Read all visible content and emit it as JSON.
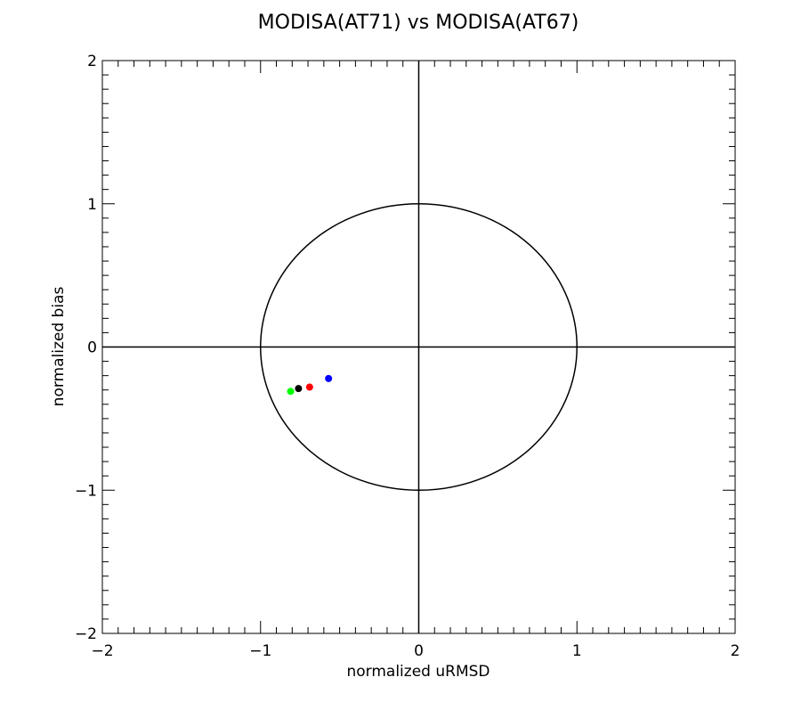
{
  "chart_data": {
    "type": "scatter",
    "title": "MODISA(AT71) vs MODISA(AT67)",
    "xlabel": "normalized uRMSD",
    "ylabel": "normalized bias",
    "xlim": [
      -2,
      2
    ],
    "ylim": [
      -2,
      2
    ],
    "xticks": [
      -2,
      -1,
      0,
      1,
      2
    ],
    "yticks": [
      -2,
      -1,
      0,
      1,
      2
    ],
    "xtick_labels": [
      "−2",
      "−1",
      "0",
      "1",
      "2"
    ],
    "ytick_labels": [
      "−2",
      "−1",
      "0",
      "1",
      "2"
    ],
    "minor_tick_step": 0.1,
    "grid": false,
    "reference_lines": [
      {
        "type": "horizontal",
        "y": 0
      },
      {
        "type": "vertical",
        "x": 0
      }
    ],
    "reference_circle": {
      "cx": 0,
      "cy": 0,
      "r": 1
    },
    "points": [
      {
        "x": -0.81,
        "y": -0.31,
        "color": "#00ff00"
      },
      {
        "x": -0.76,
        "y": -0.29,
        "color": "#000000"
      },
      {
        "x": -0.69,
        "y": -0.28,
        "color": "#ff0000"
      },
      {
        "x": -0.57,
        "y": -0.22,
        "color": "#0000ff"
      }
    ]
  }
}
